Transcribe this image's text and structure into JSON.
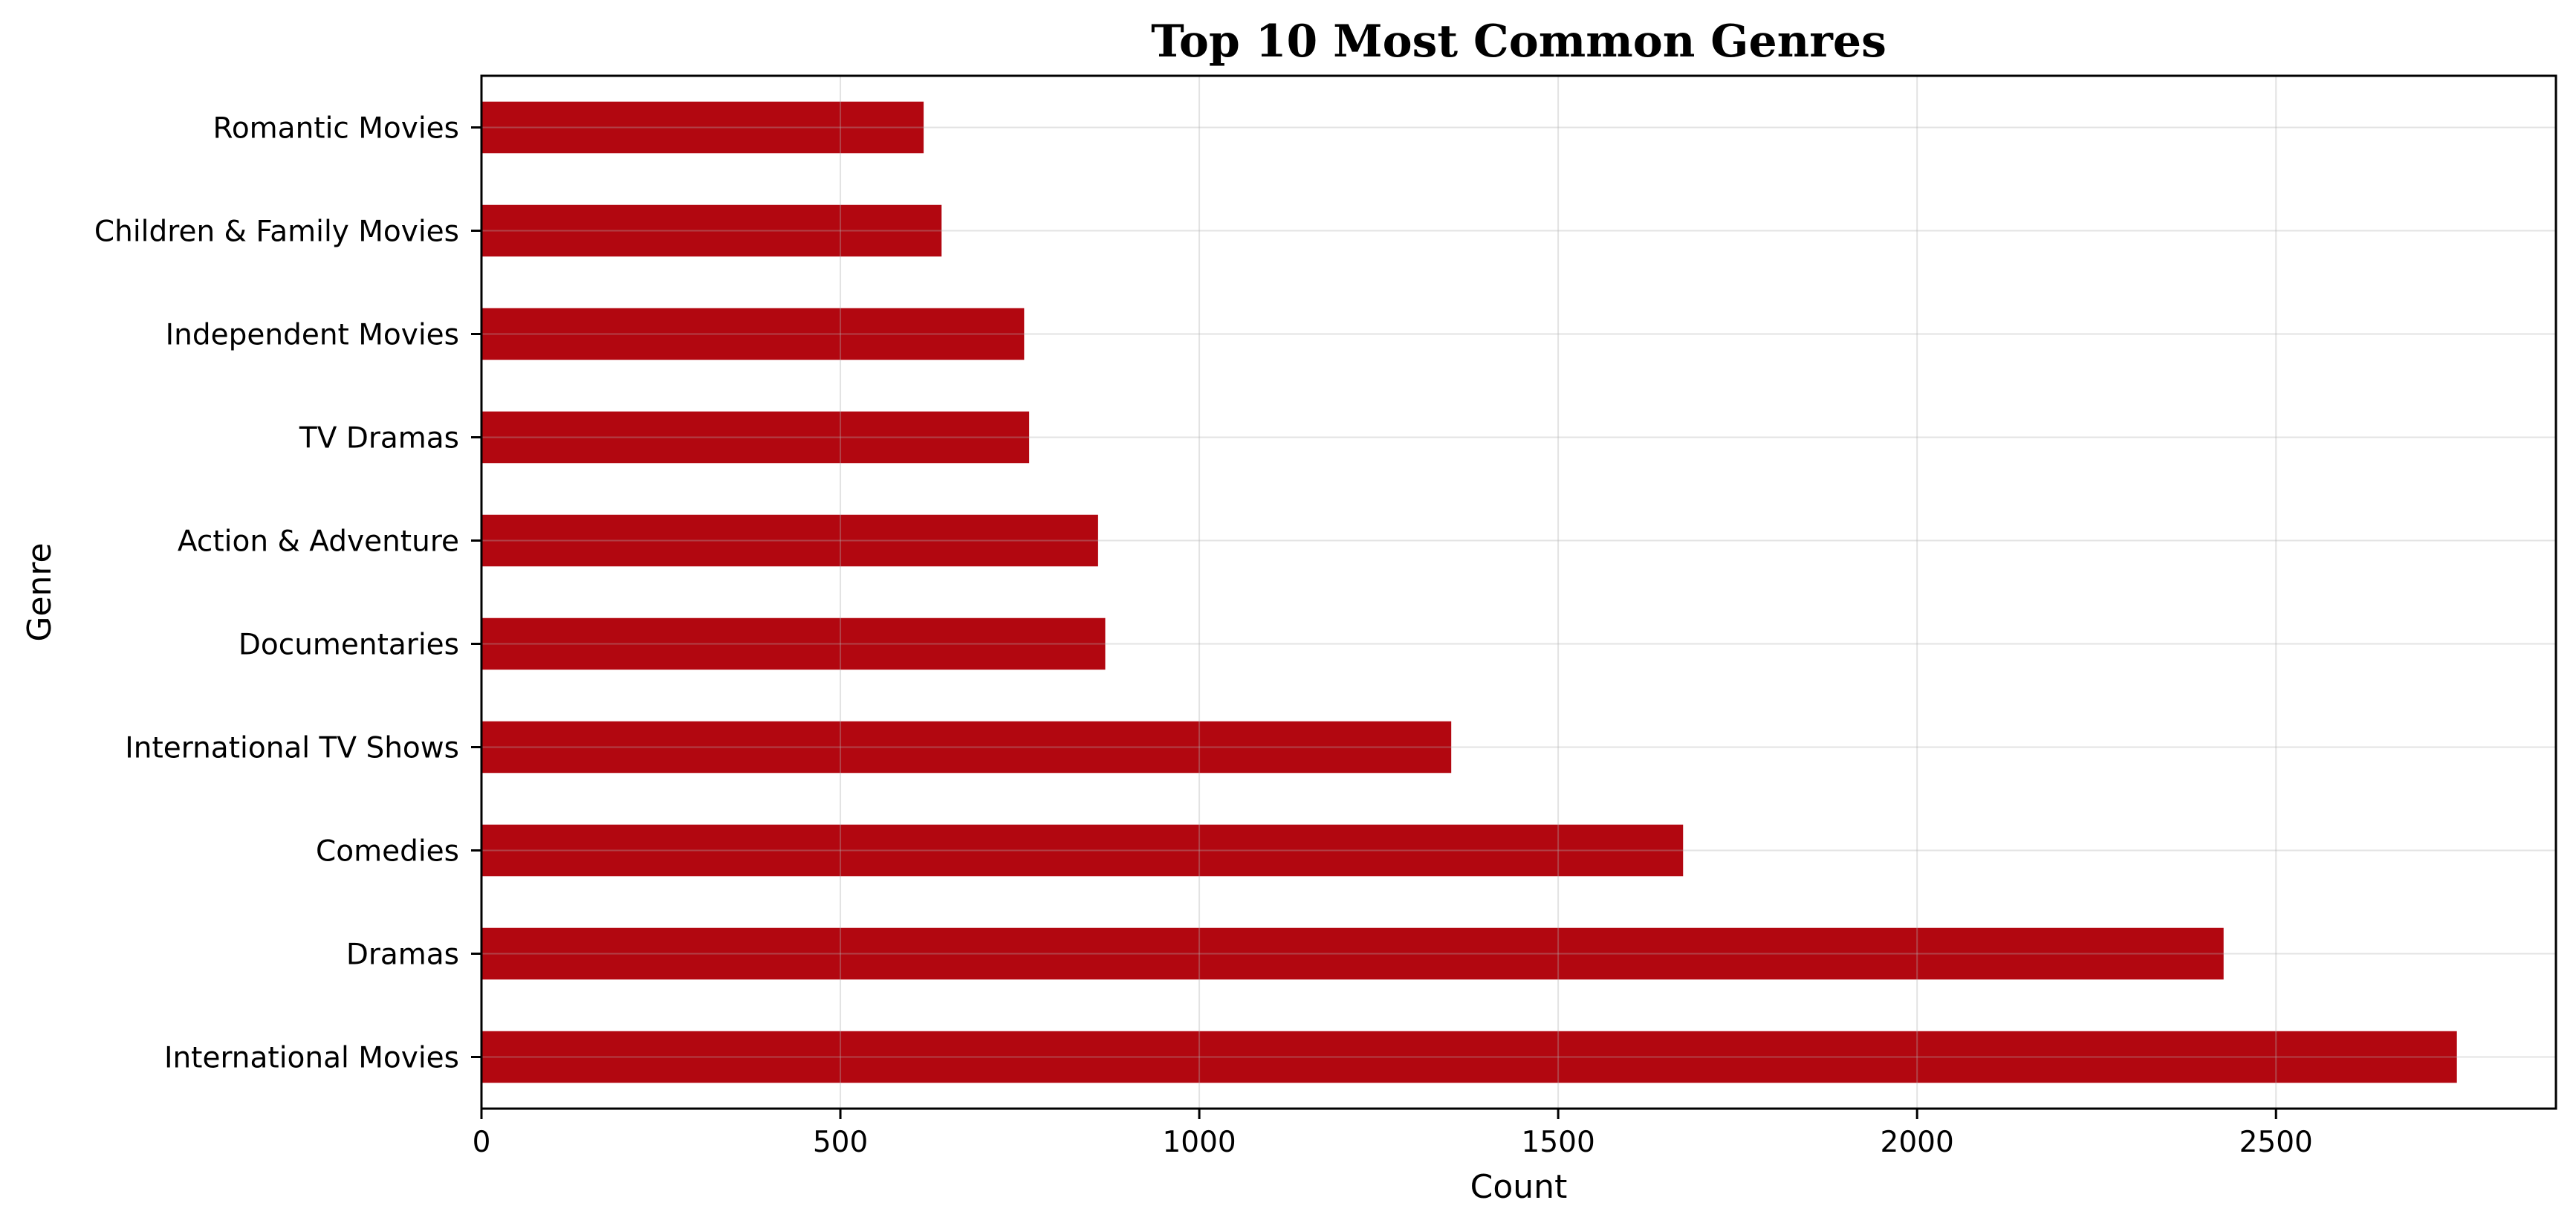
{
  "chart_data": {
    "type": "bar",
    "orientation": "horizontal",
    "title": "Top 10 Most Common Genres",
    "xlabel": "Count",
    "ylabel": "Genre",
    "categories": [
      "International Movies",
      "Dramas",
      "Comedies",
      "International TV Shows",
      "Documentaries",
      "Action & Adventure",
      "TV Dramas",
      "Independent Movies",
      "Children & Family Movies",
      "Romantic Movies"
    ],
    "values": [
      2752,
      2427,
      1674,
      1351,
      869,
      859,
      763,
      756,
      641,
      616
    ],
    "xlim": [
      0,
      2890
    ],
    "xticks": [
      0,
      500,
      1000,
      1500,
      2000,
      2500
    ],
    "grid": true,
    "bar_color": "#b20710"
  }
}
